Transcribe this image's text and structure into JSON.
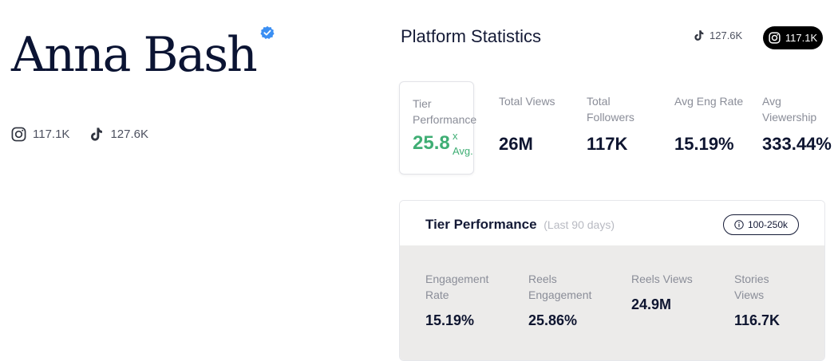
{
  "profile": {
    "name": "Anna Bash",
    "socials": [
      {
        "icon": "instagram-icon",
        "count": "117.1K"
      },
      {
        "icon": "tiktok-icon",
        "count": "127.6K"
      }
    ]
  },
  "platform_stats": {
    "title": "Platform Statistics",
    "platforms": [
      {
        "icon": "tiktok-icon",
        "count": "127.6K",
        "selected": false
      },
      {
        "icon": "instagram-icon",
        "count": "117.1K",
        "selected": true
      }
    ],
    "tier_card": {
      "label": "Tier Performance",
      "value": "25.8",
      "unit": "x Avg."
    },
    "stats": [
      {
        "label": "Total Views",
        "value": "26M"
      },
      {
        "label": "Total Followers",
        "value": "117K"
      },
      {
        "label": "Avg Eng Rate",
        "value": "15.19%"
      },
      {
        "label": "Avg Viewership",
        "value": "333.44%"
      }
    ]
  },
  "tier_performance": {
    "title": "Tier Performance",
    "subtitle": "(Last 90 days)",
    "badge": "100-250k",
    "metrics": [
      {
        "label": "Engagement Rate",
        "value": "15.19%"
      },
      {
        "label": "Reels Engagement",
        "value": "25.86%"
      },
      {
        "label": "Reels Views",
        "value": "24.9M"
      },
      {
        "label": "Stories Views",
        "value": "116.7K"
      }
    ]
  },
  "colors": {
    "accent_green": "#3fae74",
    "verified_blue": "#3b8ff3",
    "dark": "#000000"
  }
}
